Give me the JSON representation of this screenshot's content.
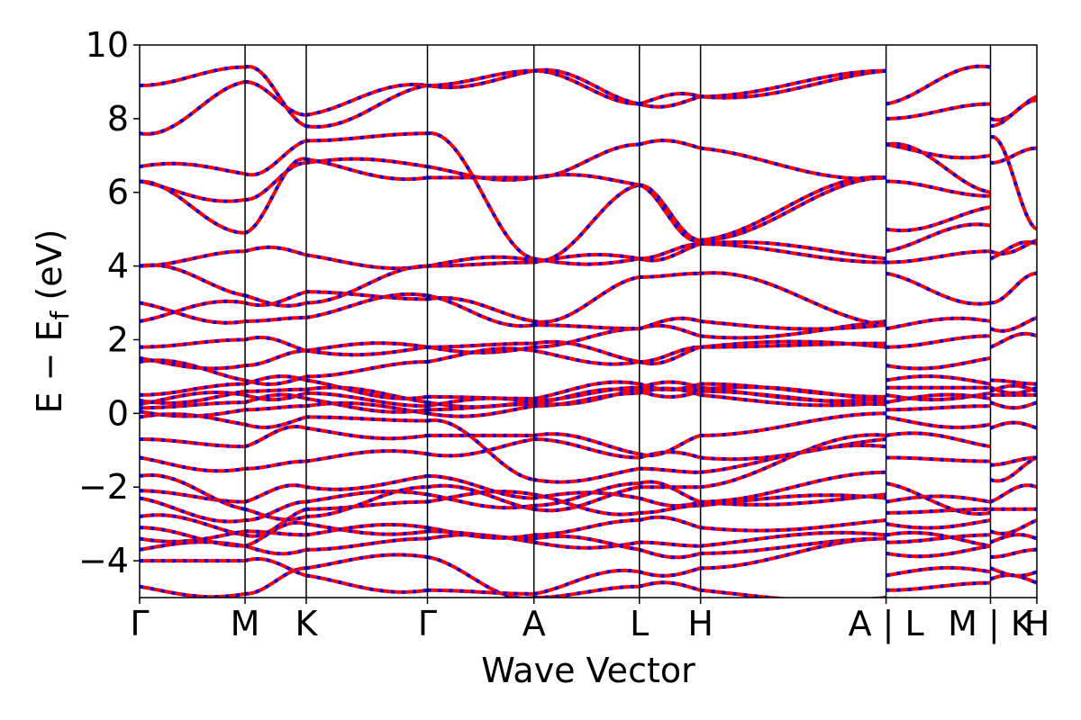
{
  "chart_data": {
    "type": "line",
    "title": "",
    "xlabel": "Wave Vector",
    "ylabel": "E − E",
    "ylabel_subscript": "f",
    "ylabel_unit": " (eV)",
    "ylim": [
      -5,
      10
    ],
    "yticks": [
      {
        "value": 10,
        "label": "10"
      },
      {
        "value": 8,
        "label": "8"
      },
      {
        "value": 6,
        "label": "6"
      },
      {
        "value": 4,
        "label": "4"
      },
      {
        "value": 2,
        "label": "2"
      },
      {
        "value": 0,
        "label": "0"
      },
      {
        "value": -2,
        "label": "−2"
      },
      {
        "value": -4,
        "label": "−4"
      }
    ],
    "kpoint_labels": [
      "Γ",
      "M",
      "K",
      "Γ",
      "A",
      "L",
      "H",
      "A|L",
      "M|K",
      "H"
    ],
    "xlim": [
      0,
      8.51
    ],
    "kpoint_positions": [
      0,
      1.0,
      1.58,
      2.73,
      3.74,
      4.74,
      5.32,
      7.08,
      8.07,
      8.51
    ],
    "grid": false,
    "legend": "none",
    "series_style": {
      "color_main": "#ff0000",
      "color_overlay": "#0000ff"
    },
    "segments": [
      {
        "from": "Γ",
        "to": "M",
        "bands": [
          [
            -4.7,
            -4.9
          ],
          [
            -4.0,
            -4.0
          ],
          [
            -3.7,
            -3.6
          ],
          [
            -3.4,
            -3.2
          ],
          [
            -3.1,
            -3.6
          ],
          [
            -2.8,
            -3.3
          ],
          [
            -2.3,
            -2.9
          ],
          [
            -2.1,
            -2.4
          ],
          [
            -1.7,
            -2.6
          ],
          [
            -1.2,
            -1.5
          ],
          [
            -0.7,
            -0.9
          ],
          [
            -0.1,
            -0.3
          ],
          [
            0.05,
            0.1
          ],
          [
            0.15,
            0.3
          ],
          [
            0.25,
            0.5
          ],
          [
            0.35,
            0.6
          ],
          [
            0.5,
            0.8
          ],
          [
            1.4,
            0.9
          ],
          [
            1.5,
            1.3
          ],
          [
            1.8,
            2.0
          ],
          [
            2.5,
            3.0
          ],
          [
            3.0,
            2.5
          ],
          [
            4.0,
            4.4
          ],
          [
            4.0,
            3.2
          ],
          [
            6.3,
            5.8
          ],
          [
            6.3,
            4.9
          ],
          [
            6.7,
            6.5
          ],
          [
            7.6,
            9.0
          ],
          [
            8.9,
            9.4
          ]
        ]
      },
      {
        "from": "M",
        "to": "K",
        "bands": [
          [
            -4.9,
            -4.2
          ],
          [
            -4.0,
            -4.4
          ],
          [
            -3.6,
            -3.7
          ],
          [
            -3.2,
            -3.3
          ],
          [
            -3.6,
            -3.0
          ],
          [
            -3.3,
            -2.6
          ],
          [
            -2.9,
            -2.4
          ],
          [
            -2.4,
            -2.0
          ],
          [
            -2.6,
            -2.8
          ],
          [
            -1.5,
            -1.3
          ],
          [
            -0.9,
            -0.4
          ],
          [
            -0.3,
            -0.1
          ],
          [
            0.1,
            0.2
          ],
          [
            0.3,
            0.4
          ],
          [
            0.5,
            0.55
          ],
          [
            0.6,
            0.65
          ],
          [
            0.8,
            0.9
          ],
          [
            0.9,
            1.0
          ],
          [
            1.3,
            1.7
          ],
          [
            2.0,
            1.7
          ],
          [
            3.0,
            3.3
          ],
          [
            2.5,
            2.6
          ],
          [
            4.4,
            4.3
          ],
          [
            3.2,
            3.0
          ],
          [
            5.8,
            6.8
          ],
          [
            4.9,
            6.9
          ],
          [
            6.5,
            7.4
          ],
          [
            9.0,
            8.1
          ],
          [
            9.4,
            7.8
          ]
        ]
      },
      {
        "from": "K",
        "to": "Γ",
        "bands": [
          [
            -4.2,
            -3.9
          ],
          [
            -4.4,
            -4.8
          ],
          [
            -3.7,
            -3.4
          ],
          [
            -3.3,
            -3.1
          ],
          [
            -3.0,
            -3.2
          ],
          [
            -2.6,
            -2.4
          ],
          [
            -2.4,
            -2.2
          ],
          [
            -2.0,
            -1.7
          ],
          [
            -2.8,
            -2.0
          ],
          [
            -1.3,
            -1.1
          ],
          [
            -0.4,
            -0.6
          ],
          [
            -0.1,
            -0.2
          ],
          [
            0.2,
            0.0
          ],
          [
            0.4,
            0.1
          ],
          [
            0.55,
            0.2
          ],
          [
            0.65,
            0.3
          ],
          [
            0.9,
            0.45
          ],
          [
            1.0,
            1.4
          ],
          [
            1.7,
            1.8
          ],
          [
            1.7,
            1.8
          ],
          [
            3.3,
            3.1
          ],
          [
            2.6,
            3.2
          ],
          [
            4.3,
            4.0
          ],
          [
            3.0,
            4.0
          ],
          [
            6.8,
            6.7
          ],
          [
            6.9,
            6.4
          ],
          [
            7.4,
            7.6
          ],
          [
            8.1,
            8.9
          ],
          [
            7.8,
            8.9
          ]
        ]
      },
      {
        "from": "Γ",
        "to": "A",
        "bands": [
          [
            -3.9,
            -5.0
          ],
          [
            -4.8,
            -4.9
          ],
          [
            -3.4,
            -3.5
          ],
          [
            -3.1,
            -3.3
          ],
          [
            -3.2,
            -3.4
          ],
          [
            -2.4,
            -2.2
          ],
          [
            -2.2,
            -2.5
          ],
          [
            -1.7,
            -2.3
          ],
          [
            -2.0,
            -2.6
          ],
          [
            -1.1,
            -0.7
          ],
          [
            -0.6,
            -0.6
          ],
          [
            -0.2,
            -1.8
          ],
          [
            0.0,
            0.2
          ],
          [
            0.1,
            0.25
          ],
          [
            0.2,
            0.3
          ],
          [
            0.3,
            0.35
          ],
          [
            0.45,
            0.4
          ],
          [
            1.4,
            1.7
          ],
          [
            1.8,
            1.8
          ],
          [
            1.8,
            1.9
          ],
          [
            3.1,
            2.5
          ],
          [
            3.2,
            2.4
          ],
          [
            4.0,
            4.1
          ],
          [
            4.0,
            4.15
          ],
          [
            6.7,
            6.4
          ],
          [
            6.4,
            6.4
          ],
          [
            7.6,
            4.2
          ],
          [
            8.9,
            9.3
          ],
          [
            8.9,
            9.3
          ]
        ]
      },
      {
        "from": "A",
        "to": "L",
        "bands": [
          [
            -5.0,
            -4.7
          ],
          [
            -4.9,
            -4.3
          ],
          [
            -3.5,
            -3.5
          ],
          [
            -3.3,
            -2.9
          ],
          [
            -3.4,
            -3.7
          ],
          [
            -2.2,
            -2.7
          ],
          [
            -2.5,
            -1.9
          ],
          [
            -2.3,
            -2.3
          ],
          [
            -2.6,
            -2.0
          ],
          [
            -0.7,
            -1.2
          ],
          [
            -0.6,
            -1.1
          ],
          [
            -1.8,
            -1.5
          ],
          [
            0.2,
            0.55
          ],
          [
            0.25,
            0.6
          ],
          [
            0.3,
            0.65
          ],
          [
            0.35,
            0.7
          ],
          [
            0.4,
            0.8
          ],
          [
            1.7,
            1.4
          ],
          [
            1.8,
            2.3
          ],
          [
            1.9,
            1.4
          ],
          [
            2.5,
            3.7
          ],
          [
            2.4,
            2.3
          ],
          [
            4.1,
            4.2
          ],
          [
            4.15,
            6.2
          ],
          [
            6.4,
            7.3
          ],
          [
            6.4,
            6.2
          ],
          [
            4.2,
            4.2
          ],
          [
            9.3,
            8.4
          ],
          [
            9.3,
            8.4
          ]
        ]
      },
      {
        "from": "L",
        "to": "H",
        "bands": [
          [
            -4.7,
            -4.8
          ],
          [
            -4.3,
            -4.2
          ],
          [
            -3.5,
            -3.6
          ],
          [
            -2.9,
            -3.1
          ],
          [
            -3.7,
            -3.8
          ],
          [
            -2.7,
            -2.5
          ],
          [
            -1.9,
            -2.4
          ],
          [
            -2.3,
            -2.4
          ],
          [
            -2.0,
            -2.0
          ],
          [
            -1.2,
            -1.2
          ],
          [
            -1.1,
            -0.6
          ],
          [
            -1.5,
            -1.6
          ],
          [
            0.55,
            0.5
          ],
          [
            0.6,
            0.6
          ],
          [
            0.65,
            0.65
          ],
          [
            0.7,
            0.7
          ],
          [
            0.8,
            0.8
          ],
          [
            1.4,
            1.8
          ],
          [
            2.3,
            2.1
          ],
          [
            1.4,
            1.8
          ],
          [
            3.7,
            3.8
          ],
          [
            2.3,
            2.5
          ],
          [
            4.2,
            4.6
          ],
          [
            6.2,
            4.7
          ],
          [
            7.3,
            7.2
          ],
          [
            6.2,
            4.7
          ],
          [
            4.2,
            4.6
          ],
          [
            8.4,
            8.6
          ],
          [
            8.4,
            8.6
          ]
        ]
      },
      {
        "from": "H",
        "to": "A",
        "bands": [
          [
            -4.8,
            -5.0
          ],
          [
            -4.2,
            -3.4
          ],
          [
            -3.6,
            -3.3
          ],
          [
            -3.1,
            -2.9
          ],
          [
            -3.8,
            -3.4
          ],
          [
            -2.5,
            -2.3
          ],
          [
            -2.4,
            -2.2
          ],
          [
            -2.4,
            -1.6
          ],
          [
            -2.0,
            -0.6
          ],
          [
            -1.2,
            -0.7
          ],
          [
            -0.6,
            0.0
          ],
          [
            -1.6,
            -0.9
          ],
          [
            0.5,
            0.3
          ],
          [
            0.6,
            0.25
          ],
          [
            0.65,
            0.35
          ],
          [
            0.7,
            0.4
          ],
          [
            0.8,
            0.45
          ],
          [
            1.8,
            1.8
          ],
          [
            2.1,
            2.5
          ],
          [
            1.8,
            1.9
          ],
          [
            3.8,
            2.4
          ],
          [
            2.5,
            2.4
          ],
          [
            4.6,
            4.1
          ],
          [
            4.7,
            6.4
          ],
          [
            7.2,
            6.4
          ],
          [
            4.7,
            6.4
          ],
          [
            4.6,
            4.2
          ],
          [
            8.6,
            9.3
          ],
          [
            8.6,
            9.3
          ]
        ]
      },
      {
        "from": "L",
        "to": "M",
        "bands": [
          [
            -4.8,
            -4.6
          ],
          [
            -4.4,
            -4.3
          ],
          [
            -3.8,
            -3.6
          ],
          [
            -3.5,
            -3.3
          ],
          [
            -3.3,
            -3.6
          ],
          [
            -3.0,
            -2.9
          ],
          [
            -2.7,
            -2.6
          ],
          [
            -2.4,
            -2.4
          ],
          [
            -1.9,
            -2.7
          ],
          [
            -1.2,
            -1.3
          ],
          [
            -0.6,
            -0.9
          ],
          [
            -0.1,
            -0.3
          ],
          [
            0.1,
            0.2
          ],
          [
            0.3,
            0.4
          ],
          [
            0.5,
            0.55
          ],
          [
            0.7,
            0.7
          ],
          [
            0.9,
            0.8
          ],
          [
            1.3,
            1.5
          ],
          [
            1.8,
            2.1
          ],
          [
            2.3,
            2.5
          ],
          [
            3.8,
            3.0
          ],
          [
            4.1,
            4.4
          ],
          [
            4.4,
            5.1
          ],
          [
            5.0,
            5.6
          ],
          [
            6.3,
            5.9
          ],
          [
            7.3,
            6.0
          ],
          [
            7.3,
            7.0
          ],
          [
            8.0,
            8.4
          ],
          [
            8.4,
            9.4
          ]
        ]
      },
      {
        "from": "K",
        "to": "H",
        "bands": [
          [
            -4.5,
            -4.6
          ],
          [
            -4.2,
            -4.3
          ],
          [
            -3.9,
            -3.7
          ],
          [
            -3.5,
            -3.4
          ],
          [
            -3.2,
            -2.9
          ],
          [
            -2.6,
            -2.6
          ],
          [
            -2.4,
            -2.0
          ],
          [
            -1.8,
            -1.2
          ],
          [
            -1.4,
            -1.2
          ],
          [
            -0.4,
            -0.4
          ],
          [
            0.3,
            0.3
          ],
          [
            0.5,
            0.5
          ],
          [
            0.6,
            0.6
          ],
          [
            0.7,
            0.7
          ],
          [
            0.9,
            0.8
          ],
          [
            1.8,
            2.1
          ],
          [
            2.3,
            2.6
          ],
          [
            3.0,
            3.8
          ],
          [
            4.2,
            4.6
          ],
          [
            4.4,
            4.7
          ],
          [
            6.8,
            7.2
          ],
          [
            7.5,
            5.0
          ],
          [
            8.0,
            8.6
          ],
          [
            7.8,
            8.5
          ]
        ]
      }
    ]
  }
}
